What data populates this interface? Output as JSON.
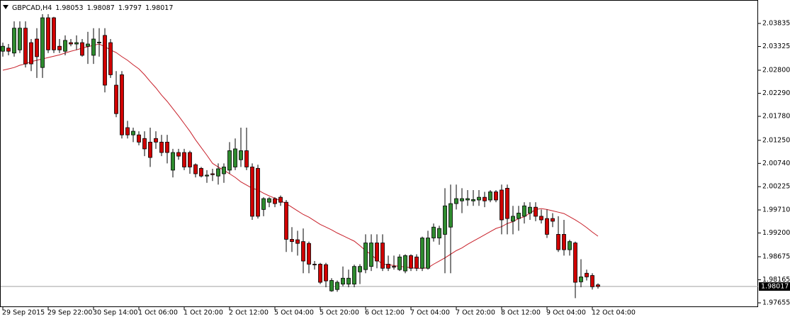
{
  "chart_data": {
    "type": "candlestick",
    "title": "GBPCAD,H4",
    "header_values": [
      1.98053,
      1.98087,
      1.9797,
      1.98017
    ],
    "current_price": 1.98017,
    "up_color": "#2e8b2e",
    "down_color": "#d00000",
    "ylim": [
      1.97561,
      2.04306
    ],
    "yticks": [
      2.03835,
      2.03325,
      {
        "value": 2.028,
        "label": "2.02800"
      },
      {
        "value": 2.0229,
        "label": "2.02290"
      },
      {
        "value": 2.0178,
        "label": "2.01780"
      },
      {
        "value": 2.0125,
        "label": "2.01250"
      },
      {
        "value": 2.0074,
        "label": "2.00740"
      },
      2.00225,
      {
        "value": 1.9971,
        "label": "1.99710"
      },
      {
        "value": 1.992,
        "label": "1.99200"
      },
      1.98675,
      1.98165,
      1.97655
    ],
    "categories": [
      "29 Sep 2015",
      null,
      null,
      null,
      null,
      null,
      null,
      null,
      "29 Sep 22:00",
      null,
      null,
      null,
      null,
      null,
      null,
      null,
      "30 Sep 14:00",
      null,
      null,
      null,
      null,
      null,
      null,
      null,
      "1 Oct 06:00",
      null,
      null,
      null,
      null,
      null,
      null,
      null,
      "1 Oct 20:00",
      null,
      null,
      null,
      null,
      null,
      null,
      null,
      "2 Oct 12:00",
      null,
      null,
      null,
      null,
      null,
      null,
      null,
      "5 Oct 04:00",
      null,
      null,
      null,
      null,
      null,
      null,
      null,
      "5 Oct 20:00",
      null,
      null,
      null,
      null,
      null,
      null,
      null,
      "6 Oct 12:00",
      null,
      null,
      null,
      null,
      null,
      null,
      null,
      "7 Oct 04:00",
      null,
      null,
      null,
      null,
      null,
      null,
      null,
      "7 Oct 20:00",
      null,
      null,
      null,
      null,
      null,
      null,
      null,
      "8 Oct 12:00",
      null,
      null,
      null,
      null,
      null,
      null,
      null,
      "9 Oct 04:00",
      null,
      null,
      null,
      null,
      null,
      null,
      null,
      "12 Oct 04:00",
      null
    ],
    "ohlc": [
      [
        2.0322,
        2.0341,
        2.031,
        2.0333
      ],
      [
        2.0329,
        2.0338,
        2.0313,
        2.0322
      ],
      [
        2.0318,
        2.0388,
        2.031,
        2.0373
      ],
      [
        2.0325,
        2.0388,
        2.0318,
        2.0373
      ],
      [
        2.0373,
        2.0388,
        2.0286,
        2.0294
      ],
      [
        2.0341,
        2.0349,
        2.0278,
        2.0294
      ],
      [
        2.0349,
        2.0373,
        2.0263,
        2.031
      ],
      [
        2.0286,
        2.0404,
        2.0263,
        2.0396
      ],
      [
        2.0396,
        2.0404,
        2.0318,
        2.0325
      ],
      [
        2.0396,
        2.0398,
        2.0318,
        2.0325
      ],
      [
        2.0333,
        2.0349,
        2.0318,
        2.0325
      ],
      [
        2.0322,
        2.0357,
        2.0313,
        2.0346
      ],
      [
        2.0341,
        2.0349,
        2.0333,
        2.0338
      ],
      [
        2.0338,
        2.0357,
        2.0325,
        2.0341
      ],
      [
        2.0341,
        2.0349,
        2.031,
        2.0313
      ],
      [
        2.0333,
        2.0365,
        2.0294,
        2.0338
      ],
      [
        2.0313,
        2.0373,
        2.0294,
        2.0349
      ],
      [
        2.0341,
        2.0373,
        2.031,
        2.0342
      ],
      [
        2.0357,
        2.0373,
        2.0231,
        2.0247
      ],
      [
        2.0341,
        2.0349,
        2.0263,
        2.027
      ],
      [
        2.0247,
        2.0278,
        2.0176,
        2.0184
      ],
      [
        2.027,
        2.0278,
        2.0129,
        2.0137
      ],
      [
        2.0153,
        2.0168,
        2.0129,
        2.0137
      ],
      [
        2.0137,
        2.0153,
        2.0121,
        2.0145
      ],
      [
        2.0137,
        2.0145,
        2.0114,
        2.0121
      ],
      [
        2.0129,
        2.0145,
        2.009,
        2.0106
      ],
      [
        2.0121,
        2.0153,
        2.0066,
        2.0087
      ],
      [
        2.0129,
        2.0145,
        2.0106,
        2.0121
      ],
      [
        2.0121,
        2.0137,
        2.009,
        2.0098
      ],
      [
        2.0121,
        2.0137,
        2.0074,
        2.0098
      ],
      [
        2.0059,
        2.0106,
        2.0043,
        2.0098
      ],
      [
        2.0098,
        2.0106,
        2.0082,
        2.009
      ],
      [
        2.0098,
        2.0106,
        2.0059,
        2.0066
      ],
      [
        2.0098,
        2.0102,
        2.0051,
        2.0066
      ],
      [
        2.0071,
        2.0074,
        2.0043,
        2.0051
      ],
      [
        2.0063,
        2.0066,
        2.0043,
        2.0046
      ],
      [
        2.0046,
        2.0059,
        2.0031,
        2.0048
      ],
      [
        2.0051,
        2.0062,
        2.0035,
        2.0049
      ],
      [
        2.0046,
        2.0074,
        2.0027,
        2.0062
      ],
      [
        2.0051,
        2.0074,
        2.0031,
        2.0066
      ],
      [
        2.0059,
        2.0121,
        2.0051,
        2.0102
      ],
      [
        2.0066,
        2.0129,
        2.0059,
        2.0106
      ],
      [
        2.0082,
        2.0153,
        2.0066,
        2.0102
      ],
      [
        2.0102,
        2.0153,
        2.0059,
        2.0066
      ],
      [
        2.0066,
        2.0074,
        1.9949,
        1.9957
      ],
      [
        2.0063,
        2.0071,
        1.9952,
        1.9957
      ],
      [
        1.9972,
        1.9999,
        1.9957,
        1.9996
      ],
      [
        1.9988,
        1.9999,
        1.9977,
        1.9996
      ],
      [
        1.9996,
        1.9999,
        1.9977,
        1.9985
      ],
      [
        1.9999,
        2.0003,
        1.998,
        1.9988
      ],
      [
        1.9988,
        1.9993,
        1.9878,
        1.9906
      ],
      [
        1.9906,
        1.9933,
        1.9878,
        1.9901
      ],
      [
        1.9905,
        1.9925,
        1.987,
        1.9897
      ],
      [
        1.9901,
        1.993,
        1.9831,
        1.9858
      ],
      [
        1.9897,
        1.9901,
        1.9831,
        1.9851
      ],
      [
        1.9851,
        1.9858,
        1.9839,
        1.985
      ],
      [
        1.9851,
        1.9854,
        1.9807,
        1.9811
      ],
      [
        1.985,
        1.9854,
        1.98,
        1.9814
      ],
      [
        1.9792,
        1.982,
        1.979,
        1.9815
      ],
      [
        1.9795,
        1.9815,
        1.979,
        1.9811
      ],
      [
        1.9807,
        1.9846,
        1.9802,
        1.982
      ],
      [
        1.9807,
        1.9839,
        1.98,
        1.982
      ],
      [
        1.9807,
        1.985,
        1.98,
        1.9846
      ],
      [
        1.9834,
        1.9851,
        1.9807,
        1.9846
      ],
      [
        1.9839,
        1.9917,
        1.9831,
        1.9898
      ],
      [
        1.9846,
        1.9917,
        1.9836,
        1.9898
      ],
      [
        1.9898,
        1.9917,
        1.9842,
        1.9858
      ],
      [
        1.9898,
        1.9917,
        1.9836,
        1.9842
      ],
      [
        1.9851,
        1.987,
        1.9836,
        1.9842
      ],
      [
        1.9846,
        1.987,
        1.9839,
        1.9845
      ],
      [
        1.9839,
        1.9873,
        1.9836,
        1.9867
      ],
      [
        1.9836,
        1.9873,
        1.9831,
        1.987
      ],
      [
        1.987,
        1.9873,
        1.9836,
        1.9842
      ],
      [
        1.9867,
        1.9873,
        1.9836,
        1.9842
      ],
      [
        1.9842,
        1.9912,
        1.9836,
        1.9909
      ],
      [
        1.9842,
        1.9925,
        1.9839,
        1.9909
      ],
      [
        1.9909,
        1.9941,
        1.9901,
        1.9933
      ],
      [
        1.9909,
        1.9936,
        1.9894,
        1.993
      ],
      [
        1.9917,
        2.0019,
        1.9831,
        1.998
      ],
      [
        1.9933,
        2.0027,
        1.9831,
        1.9985
      ],
      [
        1.9985,
        2.0027,
        1.9972,
        1.9996
      ],
      [
        1.9991,
        2.0019,
        1.9964,
        1.9996
      ],
      [
        1.9993,
        2.0015,
        1.998,
        1.9996
      ],
      [
        1.9991,
        2.0015,
        1.998,
        1.9994
      ],
      [
        1.9993,
        2.0015,
        1.998,
        1.9999
      ],
      [
        1.9999,
        2.0011,
        1.9977,
        1.9991
      ],
      [
        1.9993,
        2.0015,
        1.9988,
        2.0011
      ],
      [
        2.0011,
        2.0015,
        1.9988,
        1.9993
      ],
      [
        2.0015,
        2.0027,
        1.9917,
        1.9949
      ],
      [
        2.0019,
        2.0027,
        1.9917,
        1.9952
      ],
      [
        1.9946,
        1.998,
        1.9917,
        1.9957
      ],
      [
        1.9952,
        1.998,
        1.9925,
        1.9964
      ],
      [
        1.9957,
        1.9988,
        1.9941,
        1.998
      ],
      [
        1.9964,
        1.9988,
        1.9949,
        1.9977
      ],
      [
        1.9977,
        1.9988,
        1.9946,
        1.9957
      ],
      [
        1.9957,
        1.9972,
        1.9941,
        1.9949
      ],
      [
        1.9952,
        1.9972,
        1.9909,
        1.9917
      ],
      [
        1.9952,
        1.9964,
        1.9933,
        1.9946
      ],
      [
        1.9917,
        1.9957,
        1.9878,
        1.9883
      ],
      [
        1.9917,
        1.9949,
        1.987,
        1.9883
      ],
      [
        1.9883,
        1.9905,
        1.987,
        1.9901
      ],
      [
        1.9898,
        1.9901,
        1.9776,
        1.9811
      ],
      [
        1.9812,
        1.9862,
        1.98,
        1.9823
      ],
      [
        1.9831,
        1.9839,
        1.9815,
        1.9823
      ],
      [
        1.9826,
        1.9831,
        1.9795,
        1.9801
      ],
      [
        1.98053,
        1.98087,
        1.9797,
        1.98017
      ]
    ],
    "ma": {
      "color": "#c8202a",
      "values": [
        2.028,
        2.0283,
        2.0286,
        2.0291,
        2.0294,
        2.0299,
        2.0302,
        2.0305,
        2.0308,
        2.0311,
        2.0314,
        2.0318,
        2.0322,
        2.0325,
        2.0329,
        2.0332,
        2.0335,
        2.0338,
        2.0332,
        2.0325,
        2.0319,
        2.031,
        2.0302,
        2.0292,
        2.0283,
        2.027,
        2.0255,
        2.0241,
        2.0225,
        2.0211,
        2.0195,
        2.0179,
        2.0162,
        2.0145,
        2.0126,
        2.0109,
        2.0092,
        2.0074,
        2.0066,
        2.0059,
        2.0051,
        2.0043,
        2.0033,
        2.0026,
        2.0019,
        2.0015,
        2.0008,
        2.0002,
        1.9997,
        1.9991,
        1.9985,
        1.9977,
        1.9969,
        1.9961,
        1.9955,
        1.9947,
        1.9939,
        1.9933,
        1.9927,
        1.992,
        1.9914,
        1.9908,
        1.9902,
        1.9892,
        1.9881,
        1.9872,
        1.9861,
        1.9851,
        1.985,
        1.9848,
        1.9846,
        1.9845,
        1.9843,
        1.9842,
        1.9842,
        1.9843,
        1.9851,
        1.9858,
        1.9865,
        1.9873,
        1.9881,
        1.9887,
        1.9895,
        1.9902,
        1.9909,
        1.9916,
        1.9923,
        1.993,
        1.9934,
        1.9941,
        1.9945,
        1.9952,
        1.9956,
        1.9964,
        1.9972,
        1.9974,
        1.9972,
        1.9969,
        1.9966,
        1.9963,
        1.9956,
        1.9949,
        1.9941,
        1.9932,
        1.9922,
        1.9913
      ]
    }
  }
}
